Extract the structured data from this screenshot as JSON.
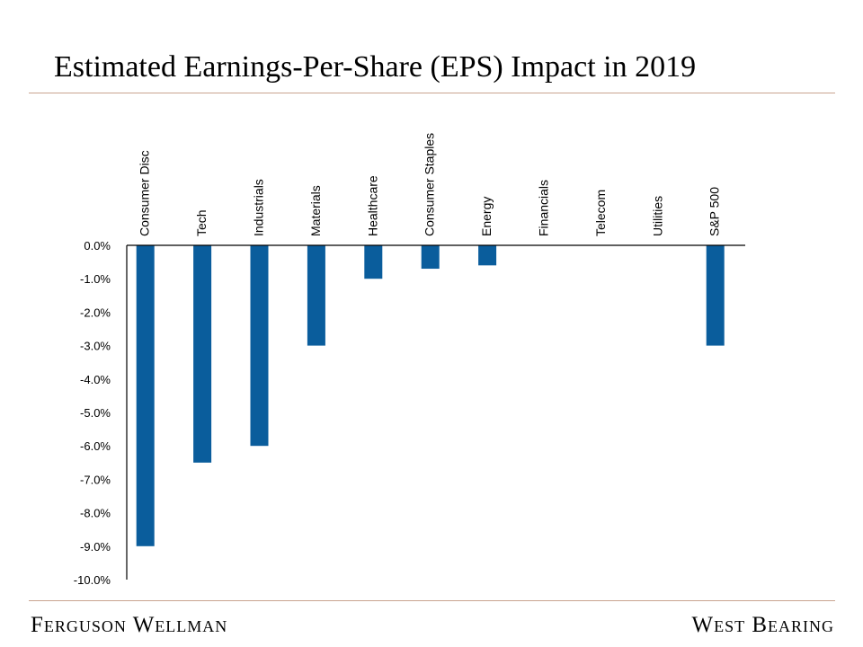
{
  "page": {
    "title": "Estimated Earnings-Per-Share (EPS) Impact in 2019",
    "footer_left": "Ferguson Wellman",
    "footer_right": "West Bearing",
    "rule_color": "#c9a38f"
  },
  "chart_data": {
    "type": "bar",
    "title": "Estimated Earnings-Per-Share (EPS) Impact in 2019",
    "xlabel": "",
    "ylabel": "",
    "categories": [
      "Consumer Disc",
      "Tech",
      "Industrials",
      "Materials",
      "Healthcare",
      "Consumer Staples",
      "Energy",
      "Financials",
      "Telecom",
      "Utilities",
      "S&P 500"
    ],
    "values": [
      -9.0,
      -6.5,
      -6.0,
      -3.0,
      -1.0,
      -0.7,
      -0.6,
      0.0,
      0.0,
      0.0,
      -3.0
    ],
    "ylim": [
      -10,
      0
    ],
    "yticks": [
      "0.0%",
      "-1.0%",
      "-2.0%",
      "-3.0%",
      "-4.0%",
      "-5.0%",
      "-6.0%",
      "-7.0%",
      "-8.0%",
      "-9.0%",
      "-10.0%"
    ],
    "grid": false,
    "legend": "none",
    "bar_color": "#0a5d9c"
  }
}
